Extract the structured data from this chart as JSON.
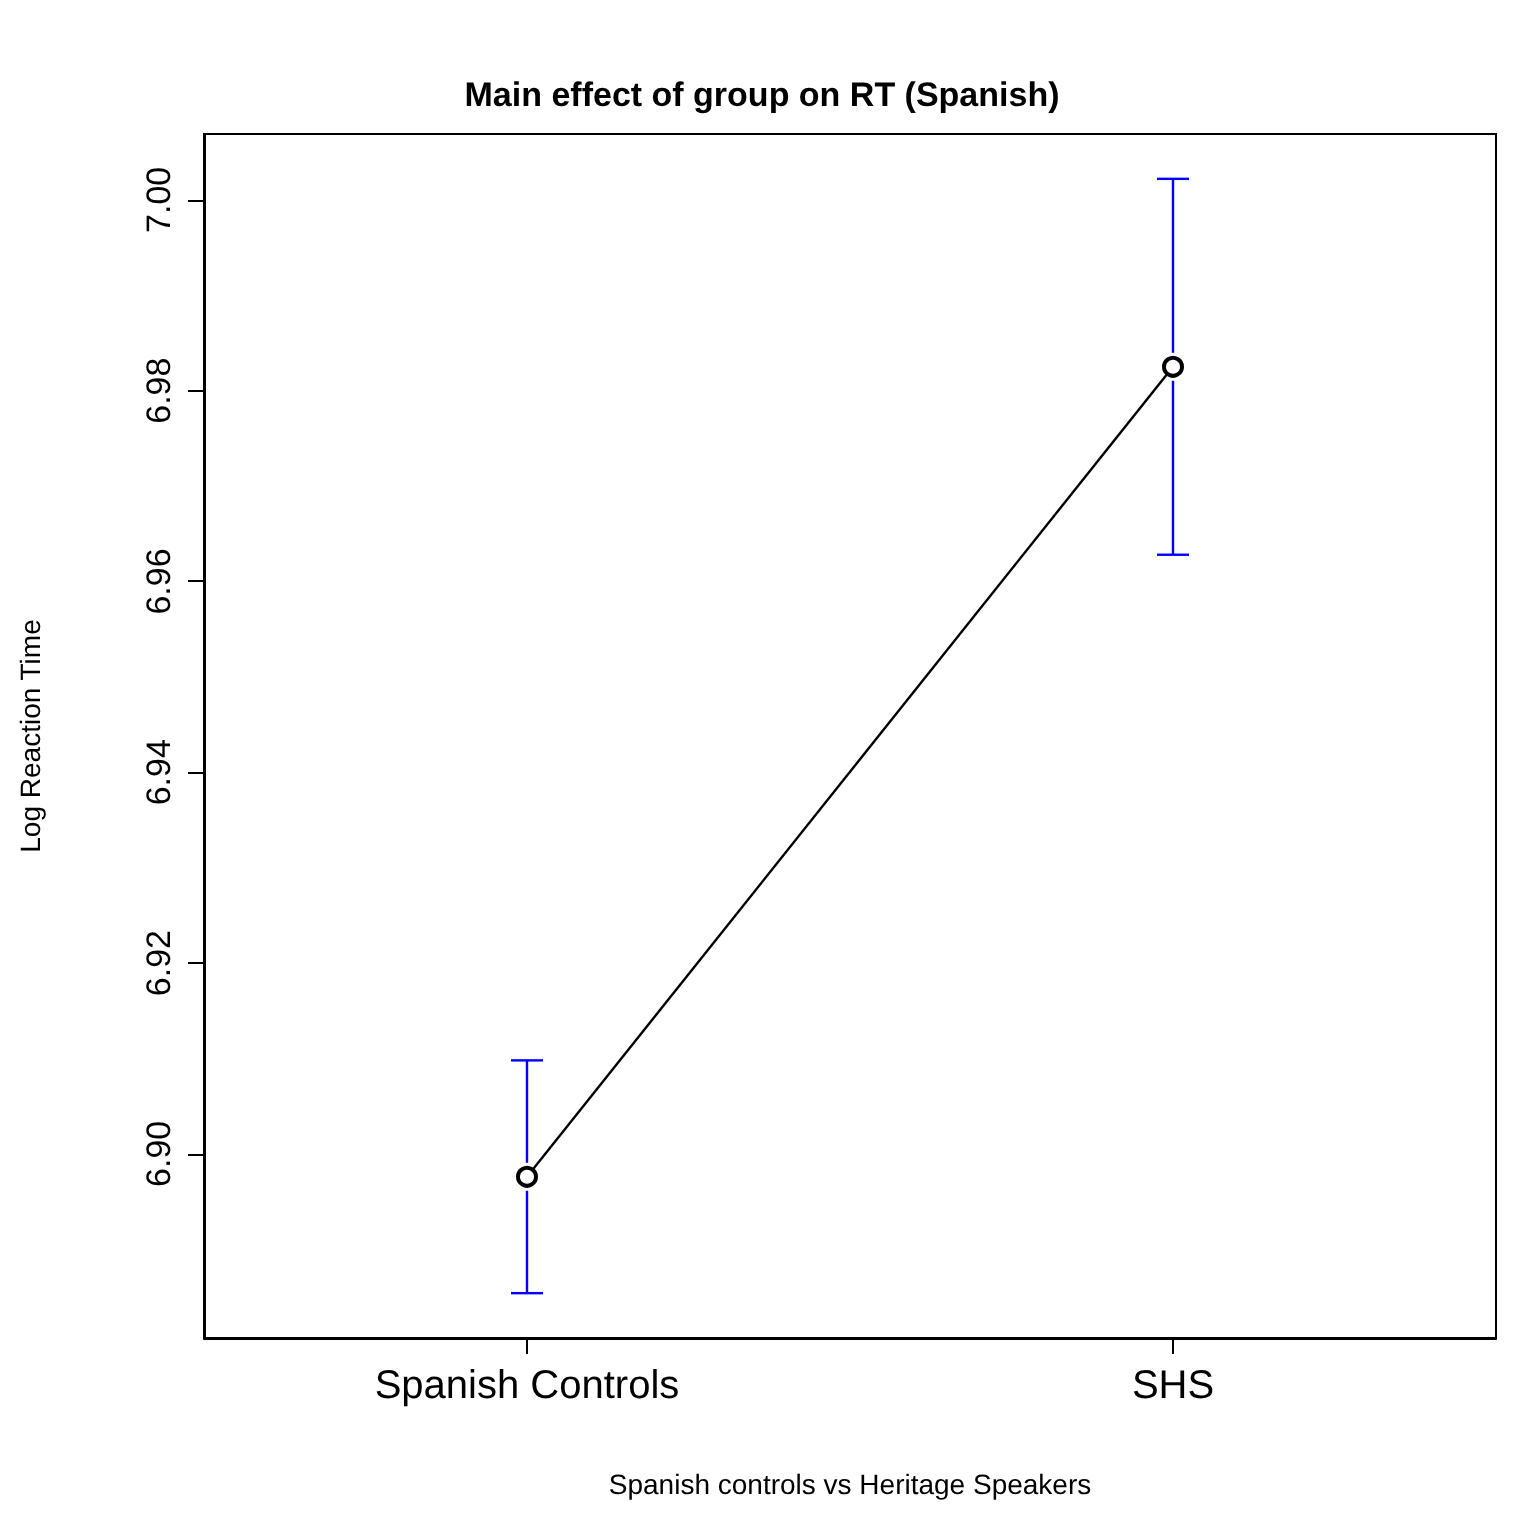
{
  "chart_data": {
    "type": "line",
    "title": "Main effect of group on RT (Spanish)",
    "xlabel": "Spanish controls vs Heritage Speakers",
    "ylabel": "Log Reaction Time",
    "categories": [
      "Spanish Controls",
      "SHS"
    ],
    "series": [
      {
        "color": "#000000",
        "values": [
          6.8976,
          6.9825
        ],
        "errors": [
          0.0122,
          0.0197
        ]
      }
    ],
    "ylim": [
      6.8807,
      7.0069
    ],
    "yticks": [
      {
        "value": 6.9,
        "label": "6.90"
      },
      6.92,
      6.94,
      6.96,
      6.98,
      {
        "value": 7,
        "label": "7.00"
      }
    ],
    "marker": "circle",
    "line_style": "solid",
    "grid": false
  }
}
